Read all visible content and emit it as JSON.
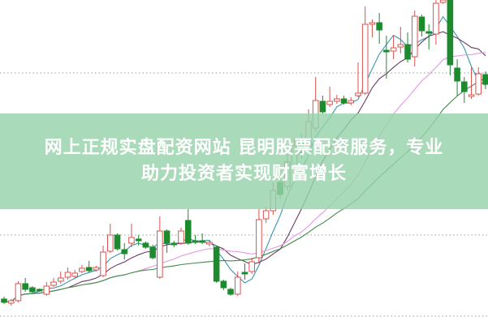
{
  "banner": {
    "line1": "网上正规实盘配资网站 昆明股票配资服务，专业",
    "line2": "助力投资者实现财富增长"
  },
  "colors": {
    "up": "#d9534f",
    "down": "#1e8a2e",
    "grid": "#999999",
    "banner": "#96d2aa",
    "ma": [
      "#3a95b0",
      "#6b3a60",
      "#e596e6",
      "#3f8a4a"
    ]
  },
  "chart_data": {
    "type": "candlestick",
    "title": "",
    "grid": true,
    "moving_average_periods": [
      5,
      10,
      20,
      30
    ],
    "ohlc": [
      [
        31,
        34,
        25,
        27
      ],
      [
        26,
        31,
        23,
        29
      ],
      [
        29,
        53,
        27,
        50
      ],
      [
        50,
        57,
        40,
        43
      ],
      [
        45,
        47,
        38,
        40
      ],
      [
        43,
        44,
        40,
        41
      ],
      [
        37,
        52,
        35,
        47
      ],
      [
        48,
        57,
        46,
        52
      ],
      [
        53,
        65,
        50,
        57
      ],
      [
        58,
        70,
        55,
        64
      ],
      [
        59,
        67,
        57,
        63
      ],
      [
        65,
        73,
        63,
        69
      ],
      [
        70,
        78,
        64,
        66
      ],
      [
        67,
        72,
        65,
        70
      ],
      [
        60,
        97,
        58,
        89
      ],
      [
        90,
        124,
        88,
        110
      ],
      [
        110,
        112,
        91,
        93
      ],
      [
        92,
        100,
        80,
        87
      ],
      [
        100,
        124,
        95,
        107
      ],
      [
        105,
        110,
        97,
        103
      ],
      [
        100,
        102,
        93,
        95
      ],
      [
        95,
        98,
        80,
        82
      ],
      [
        58,
        133,
        56,
        115
      ],
      [
        115,
        117,
        88,
        100
      ],
      [
        100,
        103,
        95,
        98
      ],
      [
        100,
        119,
        98,
        115
      ],
      [
        128,
        142,
        98,
        100
      ],
      [
        103,
        110,
        99,
        101
      ],
      [
        103,
        112,
        99,
        101
      ],
      [
        99,
        103,
        96,
        101
      ],
      [
        95,
        97,
        51,
        53
      ],
      [
        53,
        55,
        42,
        45
      ],
      [
        43,
        45,
        35,
        37
      ],
      [
        37,
        65,
        35,
        58
      ],
      [
        64,
        75,
        55,
        62
      ],
      [
        65,
        82,
        62,
        77
      ],
      [
        82,
        142,
        75,
        129
      ],
      [
        130,
        145,
        125,
        140
      ],
      [
        140,
        175,
        135,
        165
      ],
      [
        175,
        185,
        155,
        160
      ],
      [
        170,
        210,
        165,
        200
      ],
      [
        195,
        230,
        190,
        220
      ],
      [
        225,
        235,
        205,
        210
      ],
      [
        220,
        265,
        215,
        250
      ],
      [
        242,
        305,
        238,
        276
      ],
      [
        275,
        282,
        260,
        262
      ],
      [
        271,
        293,
        268,
        275
      ],
      [
        275,
        283,
        272,
        278
      ],
      [
        278,
        282,
        271,
        273
      ],
      [
        273,
        280,
        270,
        276
      ],
      [
        282,
        323,
        280,
        285
      ],
      [
        285,
        392,
        283,
        370
      ],
      [
        370,
        376,
        354,
        372
      ],
      [
        372,
        384,
        346,
        363
      ],
      [
        338,
        356,
        303,
        336
      ],
      [
        337,
        356,
        327,
        341
      ],
      [
        342,
        367,
        334,
        345
      ],
      [
        345,
        360,
        323,
        327
      ],
      [
        330,
        387,
        318,
        380
      ],
      [
        379,
        382,
        355,
        362
      ],
      [
        361,
        370,
        339,
        359
      ],
      [
        358,
        400,
        345,
        396
      ],
      [
        397,
        400,
        395,
        400
      ],
      [
        400,
        400,
        307,
        320
      ],
      [
        316,
        327,
        282,
        300
      ],
      [
        299,
        305,
        273,
        287
      ],
      [
        281,
        317,
        278,
        283
      ],
      [
        284,
        317,
        282,
        309
      ],
      [
        308,
        312,
        290,
        296
      ]
    ],
    "ylim": [
      0,
      400
    ]
  }
}
